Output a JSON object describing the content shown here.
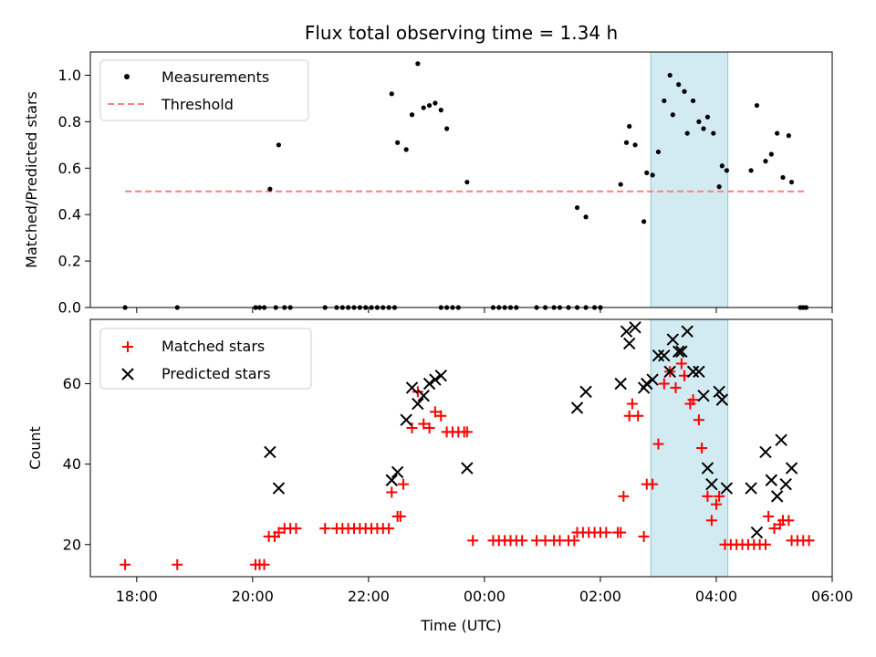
{
  "chart_data": [
    {
      "type": "scatter",
      "title": "Flux total observing time = 1.34 h",
      "xlabel": "",
      "ylabel": "Matched/Predicted stars",
      "x_unit": "hours since 00:00 UTC (negative = previous day)",
      "xlim": [
        -6.8,
        6.0
      ],
      "ylim": [
        0.0,
        1.1
      ],
      "yticks": [
        "0.0",
        "0.2",
        "0.4",
        "0.6",
        "0.8",
        "1.0"
      ],
      "highlight_span": [
        2.87,
        4.2
      ],
      "legend": [
        "Measurements",
        "Threshold"
      ],
      "legend_position": "upper left",
      "series": [
        {
          "name": "Measurements",
          "color": "#000000",
          "marker": "dot",
          "points": [
            [
              -6.2,
              0
            ],
            [
              -5.3,
              0
            ],
            [
              -3.95,
              0
            ],
            [
              -3.88,
              0
            ],
            [
              -3.8,
              0
            ],
            [
              -3.6,
              0
            ],
            [
              -3.45,
              0
            ],
            [
              -3.35,
              0
            ],
            [
              -2.75,
              0
            ],
            [
              -2.55,
              0
            ],
            [
              -2.45,
              0
            ],
            [
              -2.35,
              0
            ],
            [
              -2.25,
              0
            ],
            [
              -2.15,
              0
            ],
            [
              -2.05,
              0
            ],
            [
              -1.95,
              0
            ],
            [
              -1.85,
              0
            ],
            [
              -1.75,
              0
            ],
            [
              -1.65,
              0
            ],
            [
              -1.55,
              0
            ],
            [
              -0.75,
              0
            ],
            [
              -0.65,
              0
            ],
            [
              -0.55,
              0
            ],
            [
              -0.45,
              0
            ],
            [
              0.15,
              0
            ],
            [
              0.25,
              0
            ],
            [
              0.35,
              0
            ],
            [
              0.45,
              0
            ],
            [
              0.55,
              0
            ],
            [
              0.9,
              0
            ],
            [
              1.05,
              0
            ],
            [
              1.2,
              0
            ],
            [
              1.3,
              0
            ],
            [
              1.45,
              0
            ],
            [
              1.6,
              0
            ],
            [
              1.75,
              0
            ],
            [
              1.9,
              0
            ],
            [
              2.0,
              0
            ],
            [
              -3.7,
              0.51
            ],
            [
              -3.55,
              0.7
            ],
            [
              -1.6,
              0.92
            ],
            [
              -1.5,
              0.71
            ],
            [
              -1.35,
              0.68
            ],
            [
              -1.25,
              0.83
            ],
            [
              -1.15,
              1.05
            ],
            [
              -1.05,
              0.86
            ],
            [
              -0.95,
              0.87
            ],
            [
              -0.85,
              0.88
            ],
            [
              -0.75,
              0.85
            ],
            [
              -0.65,
              0.77
            ],
            [
              -0.3,
              0.54
            ],
            [
              1.6,
              0.43
            ],
            [
              1.75,
              0.39
            ],
            [
              2.35,
              0.53
            ],
            [
              2.45,
              0.71
            ],
            [
              2.5,
              0.78
            ],
            [
              2.6,
              0.7
            ],
            [
              2.75,
              0.37
            ],
            [
              2.8,
              0.58
            ],
            [
              2.9,
              0.57
            ],
            [
              3.0,
              0.67
            ],
            [
              3.1,
              0.89
            ],
            [
              3.2,
              1.0
            ],
            [
              3.25,
              0.83
            ],
            [
              3.35,
              0.96
            ],
            [
              3.45,
              0.93
            ],
            [
              3.5,
              0.75
            ],
            [
              3.6,
              0.89
            ],
            [
              3.7,
              0.8
            ],
            [
              3.78,
              0.77
            ],
            [
              3.85,
              0.82
            ],
            [
              3.95,
              0.75
            ],
            [
              4.05,
              0.52
            ],
            [
              4.1,
              0.61
            ],
            [
              4.18,
              0.59
            ],
            [
              4.6,
              0.59
            ],
            [
              4.7,
              0.87
            ],
            [
              4.85,
              0.63
            ],
            [
              4.95,
              0.66
            ],
            [
              5.05,
              0.75
            ],
            [
              5.15,
              0.56
            ],
            [
              5.25,
              0.74
            ],
            [
              5.3,
              0.54
            ],
            [
              5.45,
              0
            ],
            [
              5.5,
              0
            ],
            [
              5.55,
              0
            ]
          ]
        },
        {
          "name": "Threshold",
          "color": "#ff7f7f",
          "style": "dashed",
          "points": [
            [
              -6.2,
              0.5
            ],
            [
              5.55,
              0.5
            ]
          ]
        }
      ]
    },
    {
      "type": "scatter",
      "title": "",
      "xlabel": "Time (UTC)",
      "ylabel": "Count",
      "xlim": [
        -6.8,
        6.0
      ],
      "ylim": [
        12,
        76
      ],
      "xticks": [
        {
          "value": -6,
          "label": "18:00"
        },
        {
          "value": -4,
          "label": "20:00"
        },
        {
          "value": -2,
          "label": "22:00"
        },
        {
          "value": 0,
          "label": "00:00"
        },
        {
          "value": 2,
          "label": "02:00"
        },
        {
          "value": 4,
          "label": "04:00"
        },
        {
          "value": 6,
          "label": "06:00"
        }
      ],
      "yticks": [
        "20",
        "40",
        "60"
      ],
      "highlight_span": [
        2.87,
        4.2
      ],
      "legend": [
        "Matched stars",
        "Predicted stars"
      ],
      "legend_position": "upper left",
      "series": [
        {
          "name": "Matched stars",
          "color": "#ff0000",
          "marker": "plus",
          "points": [
            [
              -6.2,
              15
            ],
            [
              -5.3,
              15
            ],
            [
              -3.95,
              15
            ],
            [
              -3.88,
              15
            ],
            [
              -3.8,
              15
            ],
            [
              -3.72,
              22
            ],
            [
              -3.62,
              22
            ],
            [
              -3.55,
              23
            ],
            [
              -3.45,
              24
            ],
            [
              -3.35,
              24
            ],
            [
              -3.25,
              24
            ],
            [
              -2.75,
              24
            ],
            [
              -2.55,
              24
            ],
            [
              -2.45,
              24
            ],
            [
              -2.35,
              24
            ],
            [
              -2.25,
              24
            ],
            [
              -2.15,
              24
            ],
            [
              -2.05,
              24
            ],
            [
              -1.95,
              24
            ],
            [
              -1.85,
              24
            ],
            [
              -1.75,
              24
            ],
            [
              -1.65,
              24
            ],
            [
              -1.6,
              33
            ],
            [
              -1.5,
              27
            ],
            [
              -1.45,
              27
            ],
            [
              -1.4,
              35
            ],
            [
              -1.25,
              49
            ],
            [
              -1.15,
              58
            ],
            [
              -1.05,
              50
            ],
            [
              -0.95,
              49
            ],
            [
              -0.85,
              53
            ],
            [
              -0.75,
              52
            ],
            [
              -0.65,
              48
            ],
            [
              -0.55,
              48
            ],
            [
              -0.45,
              48
            ],
            [
              -0.35,
              48
            ],
            [
              -0.3,
              48
            ],
            [
              -0.2,
              21
            ],
            [
              0.15,
              21
            ],
            [
              0.25,
              21
            ],
            [
              0.35,
              21
            ],
            [
              0.45,
              21
            ],
            [
              0.55,
              21
            ],
            [
              0.65,
              21
            ],
            [
              0.9,
              21
            ],
            [
              1.05,
              21
            ],
            [
              1.2,
              21
            ],
            [
              1.3,
              21
            ],
            [
              1.45,
              21
            ],
            [
              1.55,
              21
            ],
            [
              1.6,
              23
            ],
            [
              1.7,
              23
            ],
            [
              1.8,
              23
            ],
            [
              1.9,
              23
            ],
            [
              2.0,
              23
            ],
            [
              2.1,
              23
            ],
            [
              2.3,
              23
            ],
            [
              2.35,
              23
            ],
            [
              2.4,
              32
            ],
            [
              2.5,
              52
            ],
            [
              2.55,
              55
            ],
            [
              2.65,
              52
            ],
            [
              2.75,
              22
            ],
            [
              2.8,
              35
            ],
            [
              2.9,
              35
            ],
            [
              3.0,
              45
            ],
            [
              3.1,
              60
            ],
            [
              3.2,
              63
            ],
            [
              3.3,
              59
            ],
            [
              3.4,
              65
            ],
            [
              3.45,
              62
            ],
            [
              3.55,
              55
            ],
            [
              3.6,
              56
            ],
            [
              3.7,
              51
            ],
            [
              3.75,
              44
            ],
            [
              3.85,
              32
            ],
            [
              3.92,
              26
            ],
            [
              4.0,
              30
            ],
            [
              4.05,
              32
            ],
            [
              4.15,
              20
            ],
            [
              4.25,
              20
            ],
            [
              4.35,
              20
            ],
            [
              4.45,
              20
            ],
            [
              4.55,
              20
            ],
            [
              4.65,
              20
            ],
            [
              4.75,
              20
            ],
            [
              4.85,
              20
            ],
            [
              4.9,
              27
            ],
            [
              5.0,
              24
            ],
            [
              5.1,
              25
            ],
            [
              5.15,
              26
            ],
            [
              5.25,
              26
            ],
            [
              5.3,
              21
            ],
            [
              5.4,
              21
            ],
            [
              5.5,
              21
            ],
            [
              5.6,
              21
            ]
          ]
        },
        {
          "name": "Predicted stars",
          "color": "#000000",
          "marker": "x",
          "points": [
            [
              -3.7,
              43
            ],
            [
              -3.55,
              34
            ],
            [
              -1.6,
              36
            ],
            [
              -1.5,
              38
            ],
            [
              -1.35,
              51
            ],
            [
              -1.25,
              59
            ],
            [
              -1.15,
              55
            ],
            [
              -1.05,
              57
            ],
            [
              -0.95,
              60
            ],
            [
              -0.85,
              61
            ],
            [
              -0.75,
              62
            ],
            [
              -0.3,
              39
            ],
            [
              1.6,
              54
            ],
            [
              1.75,
              58
            ],
            [
              2.35,
              60
            ],
            [
              2.45,
              73
            ],
            [
              2.5,
              70
            ],
            [
              2.6,
              74
            ],
            [
              2.75,
              59
            ],
            [
              2.8,
              60
            ],
            [
              2.9,
              61
            ],
            [
              3.0,
              67
            ],
            [
              3.1,
              67
            ],
            [
              3.2,
              63
            ],
            [
              3.25,
              71
            ],
            [
              3.35,
              68
            ],
            [
              3.4,
              68
            ],
            [
              3.5,
              73
            ],
            [
              3.6,
              63
            ],
            [
              3.7,
              63
            ],
            [
              3.78,
              57
            ],
            [
              3.85,
              39
            ],
            [
              3.92,
              35
            ],
            [
              4.05,
              58
            ],
            [
              4.1,
              56
            ],
            [
              4.18,
              34
            ],
            [
              4.6,
              34
            ],
            [
              4.7,
              23
            ],
            [
              4.85,
              43
            ],
            [
              4.95,
              36
            ],
            [
              5.05,
              32
            ],
            [
              5.12,
              46
            ],
            [
              5.2,
              35
            ],
            [
              5.3,
              39
            ]
          ]
        }
      ]
    }
  ]
}
